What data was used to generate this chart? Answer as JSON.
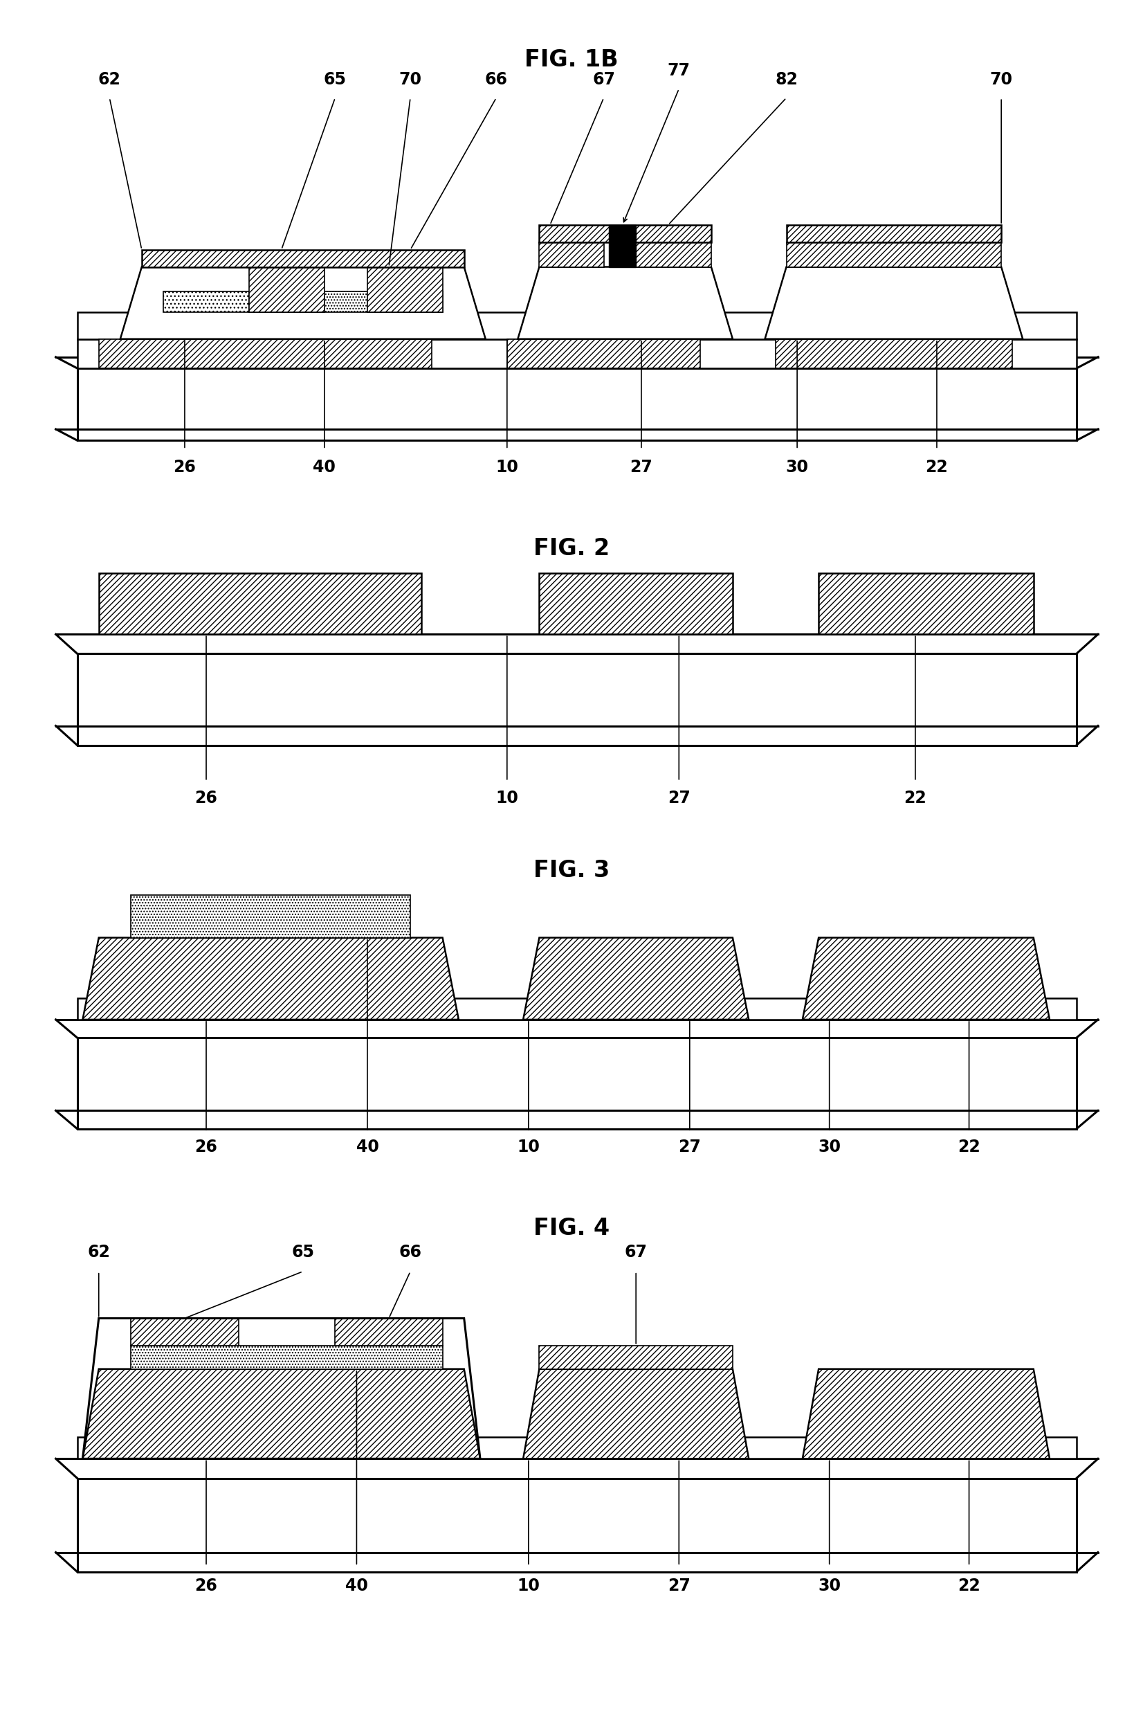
{
  "bg_color": "#ffffff",
  "lw_thick": 2.2,
  "lw_med": 1.8,
  "lw_thin": 1.2,
  "title_fontsize": 24,
  "label_fontsize": 17,
  "fig_titles": [
    "FIG. 1B",
    "FIG. 2",
    "FIG. 3",
    "FIG. 4"
  ]
}
